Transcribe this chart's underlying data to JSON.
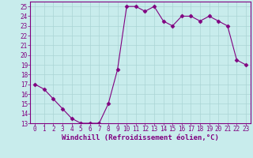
{
  "x": [
    0,
    1,
    2,
    3,
    4,
    5,
    6,
    7,
    8,
    9,
    10,
    11,
    12,
    13,
    14,
    15,
    16,
    17,
    18,
    19,
    20,
    21,
    22,
    23
  ],
  "y": [
    17,
    16.5,
    15.5,
    14.5,
    13.5,
    13,
    13,
    13,
    15,
    18.5,
    25,
    25,
    24.5,
    25,
    23.5,
    23,
    24,
    24,
    23.5,
    24,
    23.5,
    23,
    19.5,
    19
  ],
  "line_color": "#800080",
  "marker": "D",
  "marker_size": 2.5,
  "xlabel": "Windchill (Refroidissement éolien,°C)",
  "xlim": [
    -0.5,
    23.5
  ],
  "ylim": [
    13,
    25.5
  ],
  "yticks": [
    13,
    14,
    15,
    16,
    17,
    18,
    19,
    20,
    21,
    22,
    23,
    24,
    25
  ],
  "xticks": [
    0,
    1,
    2,
    3,
    4,
    5,
    6,
    7,
    8,
    9,
    10,
    11,
    12,
    13,
    14,
    15,
    16,
    17,
    18,
    19,
    20,
    21,
    22,
    23
  ],
  "xtick_labels": [
    "0",
    "1",
    "2",
    "3",
    "4",
    "5",
    "6",
    "7",
    "8",
    "9",
    "10",
    "11",
    "12",
    "13",
    "14",
    "15",
    "16",
    "17",
    "18",
    "19",
    "20",
    "21",
    "22",
    "23"
  ],
  "grid_color": "#aad4d4",
  "bg_color": "#c8ecec",
  "spine_color": "#800080",
  "tick_color": "#800080",
  "label_color": "#800080",
  "tick_fontsize": 5.5,
  "xlabel_fontsize": 6.5
}
